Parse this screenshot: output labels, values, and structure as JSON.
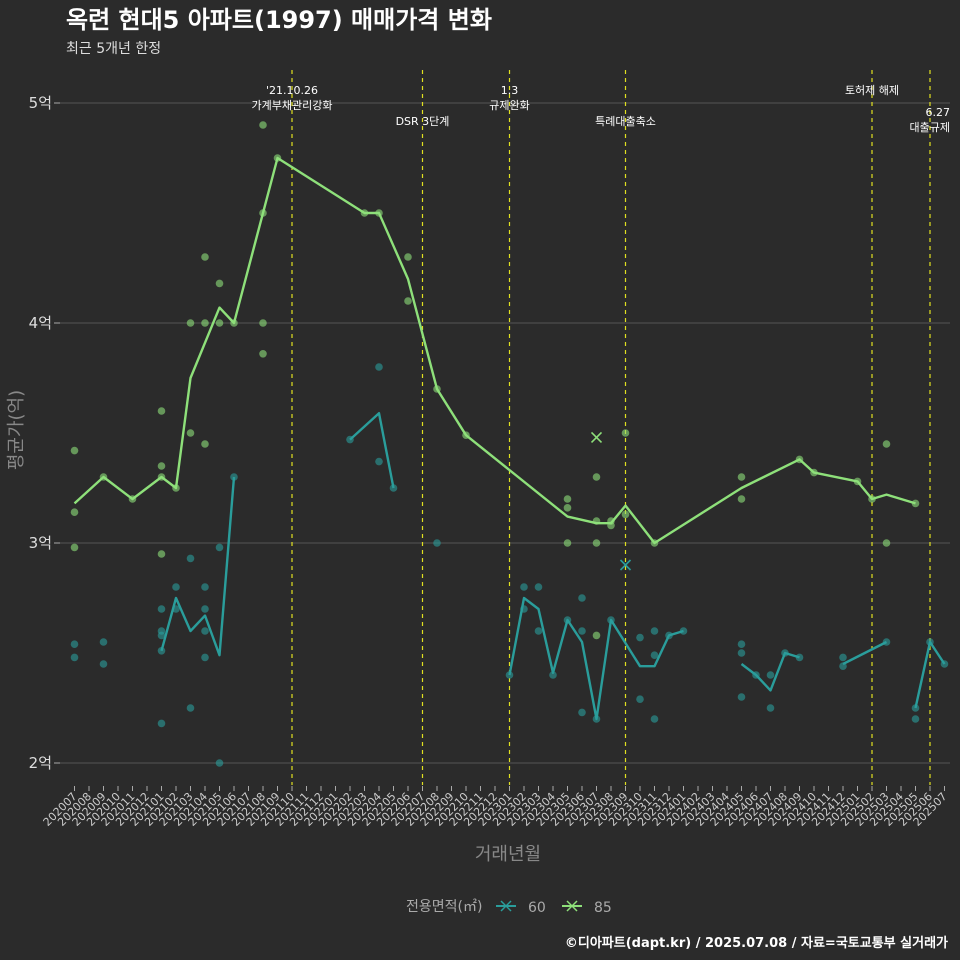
{
  "chart_data": {
    "type": "line",
    "title": "옥련 현대5 아파트(1997) 매매가격 변화",
    "subtitle": "최근 5개년 한정",
    "xlabel": "거래년월",
    "ylabel": "평균가(억)",
    "ylim": [
      1.9,
      5.15
    ],
    "yticks": [
      2,
      3,
      4,
      5
    ],
    "ytick_labels": [
      "2억",
      "3억",
      "4억",
      "5억"
    ],
    "categories": [
      "202007",
      "202008",
      "202009",
      "202010",
      "202011",
      "202012",
      "202101",
      "202102",
      "202103",
      "202104",
      "202105",
      "202106",
      "202107",
      "202108",
      "202109",
      "202110",
      "202111",
      "202112",
      "202201",
      "202202",
      "202203",
      "202204",
      "202205",
      "202206",
      "202207",
      "202208",
      "202209",
      "202210",
      "202211",
      "202212",
      "202301",
      "202302",
      "202303",
      "202304",
      "202305",
      "202306",
      "202307",
      "202308",
      "202309",
      "202310",
      "202311",
      "202312",
      "202401",
      "202402",
      "202403",
      "202404",
      "202405",
      "202406",
      "202407",
      "202408",
      "202409",
      "202410",
      "202411",
      "202412",
      "202501",
      "202502",
      "202503",
      "202504",
      "202505",
      "202506",
      "202507"
    ],
    "legend": {
      "title": "전용면적(㎡)",
      "items": [
        {
          "name": "60",
          "color": "#2a9d9b"
        },
        {
          "name": "85",
          "color": "#8ee07a"
        }
      ]
    },
    "series": [
      {
        "name": "60",
        "color": "#2a9d9b",
        "segments": [
          [
            [
              "202101",
              2.51
            ],
            [
              "202102",
              2.75
            ],
            [
              "202103",
              2.6
            ],
            [
              "202104",
              2.67
            ],
            [
              "202105",
              2.49
            ],
            [
              "202106",
              3.3
            ]
          ],
          [
            [
              "202202",
              3.47
            ],
            [
              "202204",
              3.59
            ],
            [
              "202205",
              3.25
            ]
          ],
          [
            [
              "202301",
              2.4
            ],
            [
              "202302",
              2.75
            ],
            [
              "202303",
              2.7
            ],
            [
              "202304",
              2.41
            ],
            [
              "202305",
              2.65
            ],
            [
              "202306",
              2.55
            ],
            [
              "202307",
              2.2
            ],
            [
              "202308",
              2.65
            ],
            [
              "202310",
              2.44
            ],
            [
              "202311",
              2.44
            ],
            [
              "202312",
              2.58
            ],
            [
              "202401",
              2.6
            ]
          ],
          [
            [
              "202405",
              2.45
            ],
            [
              "202406",
              2.4
            ],
            [
              "202407",
              2.33
            ],
            [
              "202408",
              2.5
            ],
            [
              "202409",
              2.48
            ]
          ],
          [
            [
              "202412",
              2.45
            ],
            [
              "202503",
              2.55
            ]
          ],
          [
            [
              "202505",
              2.25
            ],
            [
              "202506",
              2.55
            ],
            [
              "202507",
              2.45
            ]
          ]
        ],
        "points": [
          [
            "202007",
            2.54
          ],
          [
            "202007",
            2.48
          ],
          [
            "202009",
            2.55
          ],
          [
            "202009",
            2.45
          ],
          [
            "202101",
            2.7
          ],
          [
            "202101",
            2.6
          ],
          [
            "202101",
            2.58
          ],
          [
            "202101",
            2.51
          ],
          [
            "202101",
            2.18
          ],
          [
            "202102",
            2.8
          ],
          [
            "202102",
            2.7
          ],
          [
            "202103",
            2.93
          ],
          [
            "202103",
            2.25
          ],
          [
            "202104",
            2.8
          ],
          [
            "202104",
            2.7
          ],
          [
            "202104",
            2.6
          ],
          [
            "202104",
            2.48
          ],
          [
            "202105",
            2.98
          ],
          [
            "202105",
            2.0
          ],
          [
            "202106",
            3.3
          ],
          [
            "202202",
            3.47
          ],
          [
            "202204",
            3.8
          ],
          [
            "202204",
            3.37
          ],
          [
            "202205",
            3.25
          ],
          [
            "202208",
            3.0
          ],
          [
            "202301",
            2.4
          ],
          [
            "202302",
            2.8
          ],
          [
            "202302",
            2.7
          ],
          [
            "202303",
            2.8
          ],
          [
            "202303",
            2.6
          ],
          [
            "202304",
            2.4
          ],
          [
            "202305",
            2.65
          ],
          [
            "202306",
            2.75
          ],
          [
            "202306",
            2.6
          ],
          [
            "202306",
            2.23
          ],
          [
            "202307",
            2.2
          ],
          [
            "202308",
            2.65
          ],
          [
            "202310",
            2.57
          ],
          [
            "202310",
            2.29
          ],
          [
            "202311",
            2.6
          ],
          [
            "202311",
            2.49
          ],
          [
            "202311",
            2.2
          ],
          [
            "202312",
            2.58
          ],
          [
            "202401",
            2.6
          ],
          [
            "202405",
            2.54
          ],
          [
            "202405",
            2.5
          ],
          [
            "202405",
            2.3
          ],
          [
            "202406",
            2.4
          ],
          [
            "202407",
            2.4
          ],
          [
            "202407",
            2.25
          ],
          [
            "202408",
            2.5
          ],
          [
            "202409",
            2.48
          ],
          [
            "202412",
            2.48
          ],
          [
            "202412",
            2.44
          ],
          [
            "202503",
            2.55
          ],
          [
            "202505",
            2.25
          ],
          [
            "202505",
            2.2
          ],
          [
            "202506",
            2.55
          ],
          [
            "202507",
            2.45
          ]
        ],
        "cancelled": [
          [
            "202309",
            2.9
          ]
        ]
      },
      {
        "name": "85",
        "color": "#8ee07a",
        "segments": [
          [
            [
              "202007",
              3.18
            ],
            [
              "202009",
              3.3
            ],
            [
              "202011",
              3.2
            ],
            [
              "202101",
              3.3
            ],
            [
              "202102",
              3.25
            ],
            [
              "202103",
              3.75
            ],
            [
              "202105",
              4.07
            ],
            [
              "202106",
              4.0
            ],
            [
              "202109",
              4.75
            ],
            [
              "202203",
              4.5
            ],
            [
              "202204",
              4.5
            ],
            [
              "202206",
              4.2
            ],
            [
              "202208",
              3.7
            ],
            [
              "202210",
              3.49
            ],
            [
              "202305",
              3.12
            ],
            [
              "202307",
              3.09
            ],
            [
              "202308",
              3.09
            ],
            [
              "202309",
              3.17
            ],
            [
              "202311",
              3.0
            ],
            [
              "202405",
              3.25
            ],
            [
              "202409",
              3.38
            ],
            [
              "202410",
              3.32
            ],
            [
              "202501",
              3.28
            ],
            [
              "202502",
              3.2
            ],
            [
              "202503",
              3.22
            ],
            [
              "202505",
              3.18
            ]
          ]
        ],
        "points": [
          [
            "202007",
            3.42
          ],
          [
            "202007",
            3.14
          ],
          [
            "202007",
            2.98
          ],
          [
            "202009",
            3.3
          ],
          [
            "202011",
            3.2
          ],
          [
            "202101",
            3.6
          ],
          [
            "202101",
            3.35
          ],
          [
            "202101",
            3.3
          ],
          [
            "202101",
            2.95
          ],
          [
            "202102",
            3.25
          ],
          [
            "202103",
            4.0
          ],
          [
            "202103",
            3.5
          ],
          [
            "202104",
            4.3
          ],
          [
            "202104",
            4.0
          ],
          [
            "202104",
            3.45
          ],
          [
            "202105",
            4.18
          ],
          [
            "202105",
            4.0
          ],
          [
            "202106",
            4.0
          ],
          [
            "202108",
            4.9
          ],
          [
            "202108",
            4.5
          ],
          [
            "202108",
            4.0
          ],
          [
            "202108",
            3.86
          ],
          [
            "202109",
            4.75
          ],
          [
            "202203",
            4.5
          ],
          [
            "202204",
            4.5
          ],
          [
            "202206",
            4.3
          ],
          [
            "202206",
            4.1
          ],
          [
            "202208",
            3.7
          ],
          [
            "202210",
            3.49
          ],
          [
            "202305",
            3.2
          ],
          [
            "202305",
            3.16
          ],
          [
            "202305",
            3.0
          ],
          [
            "202307",
            3.3
          ],
          [
            "202307",
            3.1
          ],
          [
            "202307",
            3.0
          ],
          [
            "202307",
            2.58
          ],
          [
            "202308",
            3.1
          ],
          [
            "202308",
            3.08
          ],
          [
            "202309",
            3.5
          ],
          [
            "202309",
            3.13
          ],
          [
            "202311",
            3.0
          ],
          [
            "202405",
            3.3
          ],
          [
            "202405",
            3.2
          ],
          [
            "202409",
            3.38
          ],
          [
            "202410",
            3.32
          ],
          [
            "202501",
            3.28
          ],
          [
            "202502",
            3.2
          ],
          [
            "202503",
            3.45
          ],
          [
            "202503",
            3.0
          ],
          [
            "202505",
            3.18
          ]
        ],
        "cancelled": [
          [
            "202307",
            3.48
          ]
        ]
      }
    ],
    "events": [
      {
        "x": "202110",
        "label": "'21.10.26\n가계부채관리강화",
        "pos": "top"
      },
      {
        "x": "202207",
        "label": "DSR 3단계",
        "pos": "mid"
      },
      {
        "x": "202301",
        "label": "1.3\n규제완화",
        "pos": "top"
      },
      {
        "x": "202309",
        "label": "특례대출축소",
        "pos": "mid"
      },
      {
        "x": "202502",
        "label": "토허제 해제",
        "pos": "top"
      },
      {
        "x": "202506",
        "label": "6.27\n대출규제",
        "pos": "low"
      }
    ]
  },
  "caption": "©디아파트(dapt.kr) / 2025.07.08 / 자료=국토교통부 실거래가"
}
